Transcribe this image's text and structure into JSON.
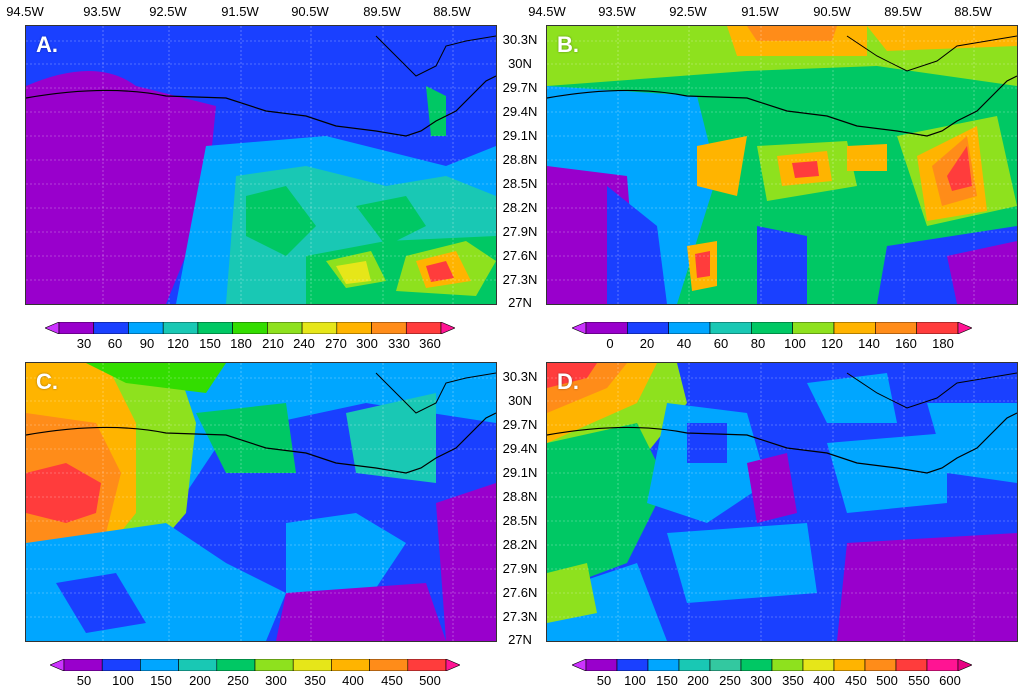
{
  "lon_labels": [
    "94.5W",
    "93.5W",
    "92.5W",
    "91.5W",
    "90.5W",
    "89.5W",
    "88.5W"
  ],
  "lat_labels": [
    "30.3N",
    "30N",
    "29.7N",
    "29.4N",
    "29.1N",
    "28.8N",
    "28.5N",
    "28.2N",
    "27.9N",
    "27.6N",
    "27.3N",
    "27N"
  ],
  "panels": [
    {
      "label": "A.",
      "colorbar_ticks": [
        "30",
        "60",
        "90",
        "120",
        "150",
        "180",
        "210",
        "240",
        "270",
        "300",
        "330",
        "360"
      ],
      "colors": [
        "#cc33ff",
        "#9900cc",
        "#1a40ff",
        "#00a6ff",
        "#19c8b4",
        "#00c864",
        "#33dd00",
        "#8ee11e",
        "#e6e619",
        "#ffb400",
        "#ff8c19",
        "#ff3c3c",
        "#ff1493"
      ]
    },
    {
      "label": "B.",
      "colorbar_ticks": [
        "0",
        "20",
        "40",
        "60",
        "80",
        "100",
        "120",
        "140",
        "160",
        "180"
      ],
      "colors": [
        "#cc33ff",
        "#9900cc",
        "#1a40ff",
        "#00a6ff",
        "#19c8b4",
        "#00c864",
        "#8ee11e",
        "#ffb400",
        "#ff8c19",
        "#ff3c3c",
        "#ff1493"
      ]
    },
    {
      "label": "C.",
      "colorbar_ticks": [
        "50",
        "100",
        "150",
        "200",
        "250",
        "300",
        "350",
        "400",
        "450",
        "500"
      ],
      "colors": [
        "#cc33ff",
        "#9900cc",
        "#1a40ff",
        "#00a6ff",
        "#19c8b4",
        "#00c864",
        "#8ee11e",
        "#e6e619",
        "#ffb400",
        "#ff8c19",
        "#ff3c3c",
        "#ff1493"
      ]
    },
    {
      "label": "D.",
      "colorbar_ticks": [
        "50",
        "100",
        "150",
        "200",
        "250",
        "300",
        "350",
        "400",
        "450",
        "500",
        "550",
        "600"
      ],
      "colors": [
        "#cc33ff",
        "#9900cc",
        "#1a40ff",
        "#00a6ff",
        "#19c8b4",
        "#33c8a0",
        "#00c864",
        "#8ee11e",
        "#e6e619",
        "#ffb400",
        "#ff8c19",
        "#ff3c3c",
        "#ff1493",
        "#e60082"
      ]
    }
  ]
}
